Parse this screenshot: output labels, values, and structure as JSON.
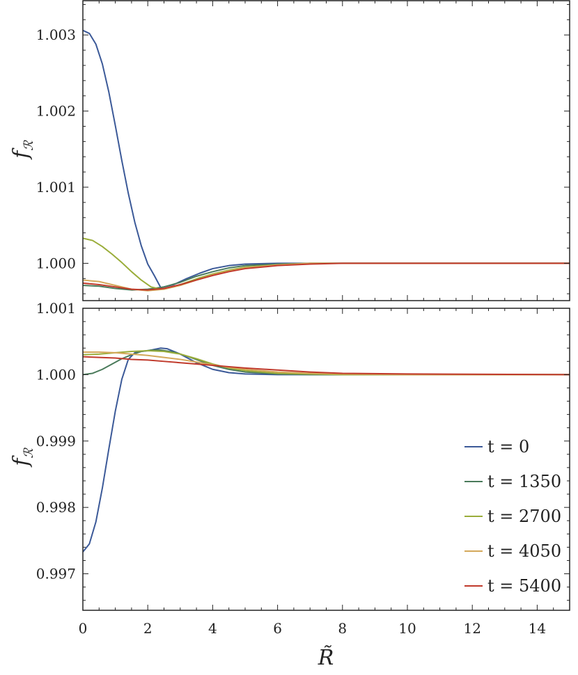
{
  "figure": {
    "xlabel": "R̃",
    "ylabel": "f",
    "ylabel_sub": "ℛ"
  },
  "legend": [
    {
      "label": "t = 0",
      "color": "#3b5998"
    },
    {
      "label": "t = 1350",
      "color": "#4a7a5a"
    },
    {
      "label": "t = 2700",
      "color": "#9aad3a"
    },
    {
      "label": "t = 4050",
      "color": "#d4a85a"
    },
    {
      "label": "t = 5400",
      "color": "#c0392b"
    }
  ],
  "chart_data": [
    {
      "type": "line",
      "panel": "top",
      "xlim": [
        0,
        15
      ],
      "ylim": [
        0.99951,
        1.00345
      ],
      "x_ticks": [
        0,
        2,
        4,
        6,
        8,
        10,
        12,
        14
      ],
      "y_ticks": [
        1.0,
        1.001,
        1.002,
        1.003
      ],
      "y_tick_labels": [
        "1.000",
        "1.001",
        "1.002",
        "1.003"
      ],
      "series": [
        {
          "name": "t = 0",
          "color": "#3b5998",
          "x": [
            0,
            0.2,
            0.4,
            0.6,
            0.8,
            1.0,
            1.2,
            1.4,
            1.6,
            1.8,
            2.0,
            2.2,
            2.4,
            2.8,
            3.2,
            3.6,
            4.0,
            4.5,
            5.0,
            6.0,
            7.0,
            8.0,
            10,
            15
          ],
          "y": [
            1.00306,
            1.00302,
            1.00288,
            1.00262,
            1.00225,
            1.00181,
            1.00135,
            1.00092,
            1.00054,
            1.00023,
            0.99999,
            0.99984,
            0.99968,
            0.99972,
            0.9998,
            0.99987,
            0.99993,
            0.99997,
            0.99999,
            1.0,
            1.0,
            1.0,
            1.0,
            1.0
          ]
        },
        {
          "name": "t = 1350",
          "color": "#4a7a5a",
          "x": [
            0,
            0.5,
            1.0,
            1.5,
            2.0,
            2.5,
            3.0,
            3.5,
            4.0,
            4.5,
            5.0,
            6.0,
            7.0,
            8.0,
            10,
            15
          ],
          "y": [
            0.99971,
            0.9997,
            0.99967,
            0.99965,
            0.99966,
            0.99969,
            0.99975,
            0.99983,
            0.99989,
            0.99994,
            0.99997,
            0.99999,
            1.0,
            1.0,
            1.0,
            1.0
          ]
        },
        {
          "name": "t = 2700",
          "color": "#9aad3a",
          "x": [
            0,
            0.3,
            0.6,
            0.9,
            1.2,
            1.5,
            1.8,
            2.1,
            2.4,
            2.8,
            3.2,
            3.6,
            4.0,
            4.5,
            5.0,
            6.0,
            7.0,
            8.0,
            10,
            15
          ],
          "y": [
            1.00033,
            1.0003,
            1.00022,
            1.00012,
            1.00001,
            0.99989,
            0.99978,
            0.99969,
            0.99966,
            0.99969,
            0.99975,
            0.99981,
            0.99986,
            0.99991,
            0.99995,
            0.99998,
            1.0,
            1.0,
            1.0,
            1.0
          ]
        },
        {
          "name": "t = 4050",
          "color": "#d4a85a",
          "x": [
            0,
            0.5,
            1.0,
            1.5,
            2.0,
            2.5,
            3.0,
            3.5,
            4.0,
            4.5,
            5.0,
            6.0,
            7.0,
            8.0,
            10,
            15
          ],
          "y": [
            0.99978,
            0.99976,
            0.99971,
            0.99966,
            0.99964,
            0.99966,
            0.99971,
            0.99978,
            0.99985,
            0.9999,
            0.99994,
            0.99998,
            1.0,
            1.0,
            1.0,
            1.0
          ]
        },
        {
          "name": "t = 5400",
          "color": "#c0392b",
          "x": [
            0,
            0.5,
            1.0,
            1.5,
            2.0,
            2.5,
            3.0,
            3.5,
            4.0,
            4.5,
            5.0,
            6.0,
            7.0,
            8.0,
            10,
            15
          ],
          "y": [
            0.99974,
            0.99972,
            0.99969,
            0.99966,
            0.99965,
            0.99967,
            0.99972,
            0.99978,
            0.99984,
            0.99989,
            0.99993,
            0.99997,
            0.99999,
            1.0,
            1.0,
            1.0
          ]
        }
      ]
    },
    {
      "type": "line",
      "panel": "bottom",
      "xlim": [
        0,
        15
      ],
      "ylim": [
        0.99645,
        1.001
      ],
      "x_ticks": [
        0,
        2,
        4,
        6,
        8,
        10,
        12,
        14
      ],
      "x_tick_labels": [
        "0",
        "2",
        "4",
        "6",
        "8",
        "10",
        "12",
        "14"
      ],
      "y_ticks": [
        0.997,
        0.998,
        0.999,
        1.0,
        1.001
      ],
      "y_tick_labels": [
        "0.997",
        "0.998",
        "0.999",
        "1.000",
        "1.001"
      ],
      "series": [
        {
          "name": "t = 0",
          "color": "#3b5998",
          "x": [
            0,
            0.2,
            0.4,
            0.6,
            0.8,
            1.0,
            1.2,
            1.4,
            1.6,
            1.8,
            2.0,
            2.2,
            2.4,
            2.6,
            3.0,
            3.5,
            4.0,
            4.5,
            5.0,
            6.0,
            7.0,
            8.0,
            10,
            15
          ],
          "y": [
            0.99733,
            0.99745,
            0.99778,
            0.99829,
            0.99888,
            0.99945,
            0.99993,
            1.00023,
            1.00033,
            1.00035,
            1.00036,
            1.00038,
            1.0004,
            1.00039,
            1.00031,
            1.00018,
            1.00008,
            1.00003,
            1.00001,
            1.0,
            1.0,
            1.0,
            1.0,
            1.0
          ]
        },
        {
          "name": "t = 1350",
          "color": "#4a7a5a",
          "x": [
            0,
            0.3,
            0.6,
            0.9,
            1.2,
            1.5,
            1.8,
            2.1,
            2.4,
            2.8,
            3.2,
            3.6,
            4.0,
            4.5,
            5.0,
            6.0,
            7.0,
            8.0,
            10,
            15
          ],
          "y": [
            1.0,
            1.00002,
            1.00008,
            1.00016,
            1.00024,
            1.0003,
            1.00035,
            1.00037,
            1.00037,
            1.00034,
            1.00028,
            1.00021,
            1.00014,
            1.00008,
            1.00004,
            1.00001,
            1.0,
            1.0,
            1.0,
            1.0
          ]
        },
        {
          "name": "t = 2700",
          "color": "#9aad3a",
          "x": [
            0,
            0.5,
            1.0,
            1.5,
            2.0,
            2.5,
            3.0,
            3.5,
            4.0,
            4.5,
            5.0,
            6.0,
            7.0,
            8.0,
            10,
            15
          ],
          "y": [
            1.0003,
            1.00031,
            1.00033,
            1.00035,
            1.00036,
            1.00035,
            1.00031,
            1.00024,
            1.00016,
            1.0001,
            1.00006,
            1.00002,
            1.00001,
            1.0,
            1.0,
            1.0
          ]
        },
        {
          "name": "t = 4050",
          "color": "#d4a85a",
          "x": [
            0,
            0.5,
            1.0,
            1.5,
            2.0,
            2.5,
            3.0,
            3.5,
            4.0,
            4.5,
            5.0,
            6.0,
            7.0,
            8.0,
            10,
            15
          ],
          "y": [
            1.00034,
            1.00034,
            1.00033,
            1.00031,
            1.00029,
            1.00026,
            1.00023,
            1.00019,
            1.00015,
            1.00011,
            1.00008,
            1.00004,
            1.00002,
            1.00001,
            1.0,
            1.0
          ]
        },
        {
          "name": "t = 5400",
          "color": "#c0392b",
          "x": [
            0,
            0.5,
            1.0,
            1.5,
            2.0,
            2.5,
            3.0,
            3.5,
            4.0,
            4.5,
            5.0,
            6.0,
            7.0,
            8.0,
            10,
            15
          ],
          "y": [
            1.00027,
            1.00026,
            1.00025,
            1.00023,
            1.00022,
            1.0002,
            1.00018,
            1.00016,
            1.00014,
            1.00012,
            1.0001,
            1.00007,
            1.00004,
            1.00002,
            1.00001,
            1.0
          ]
        }
      ]
    }
  ]
}
